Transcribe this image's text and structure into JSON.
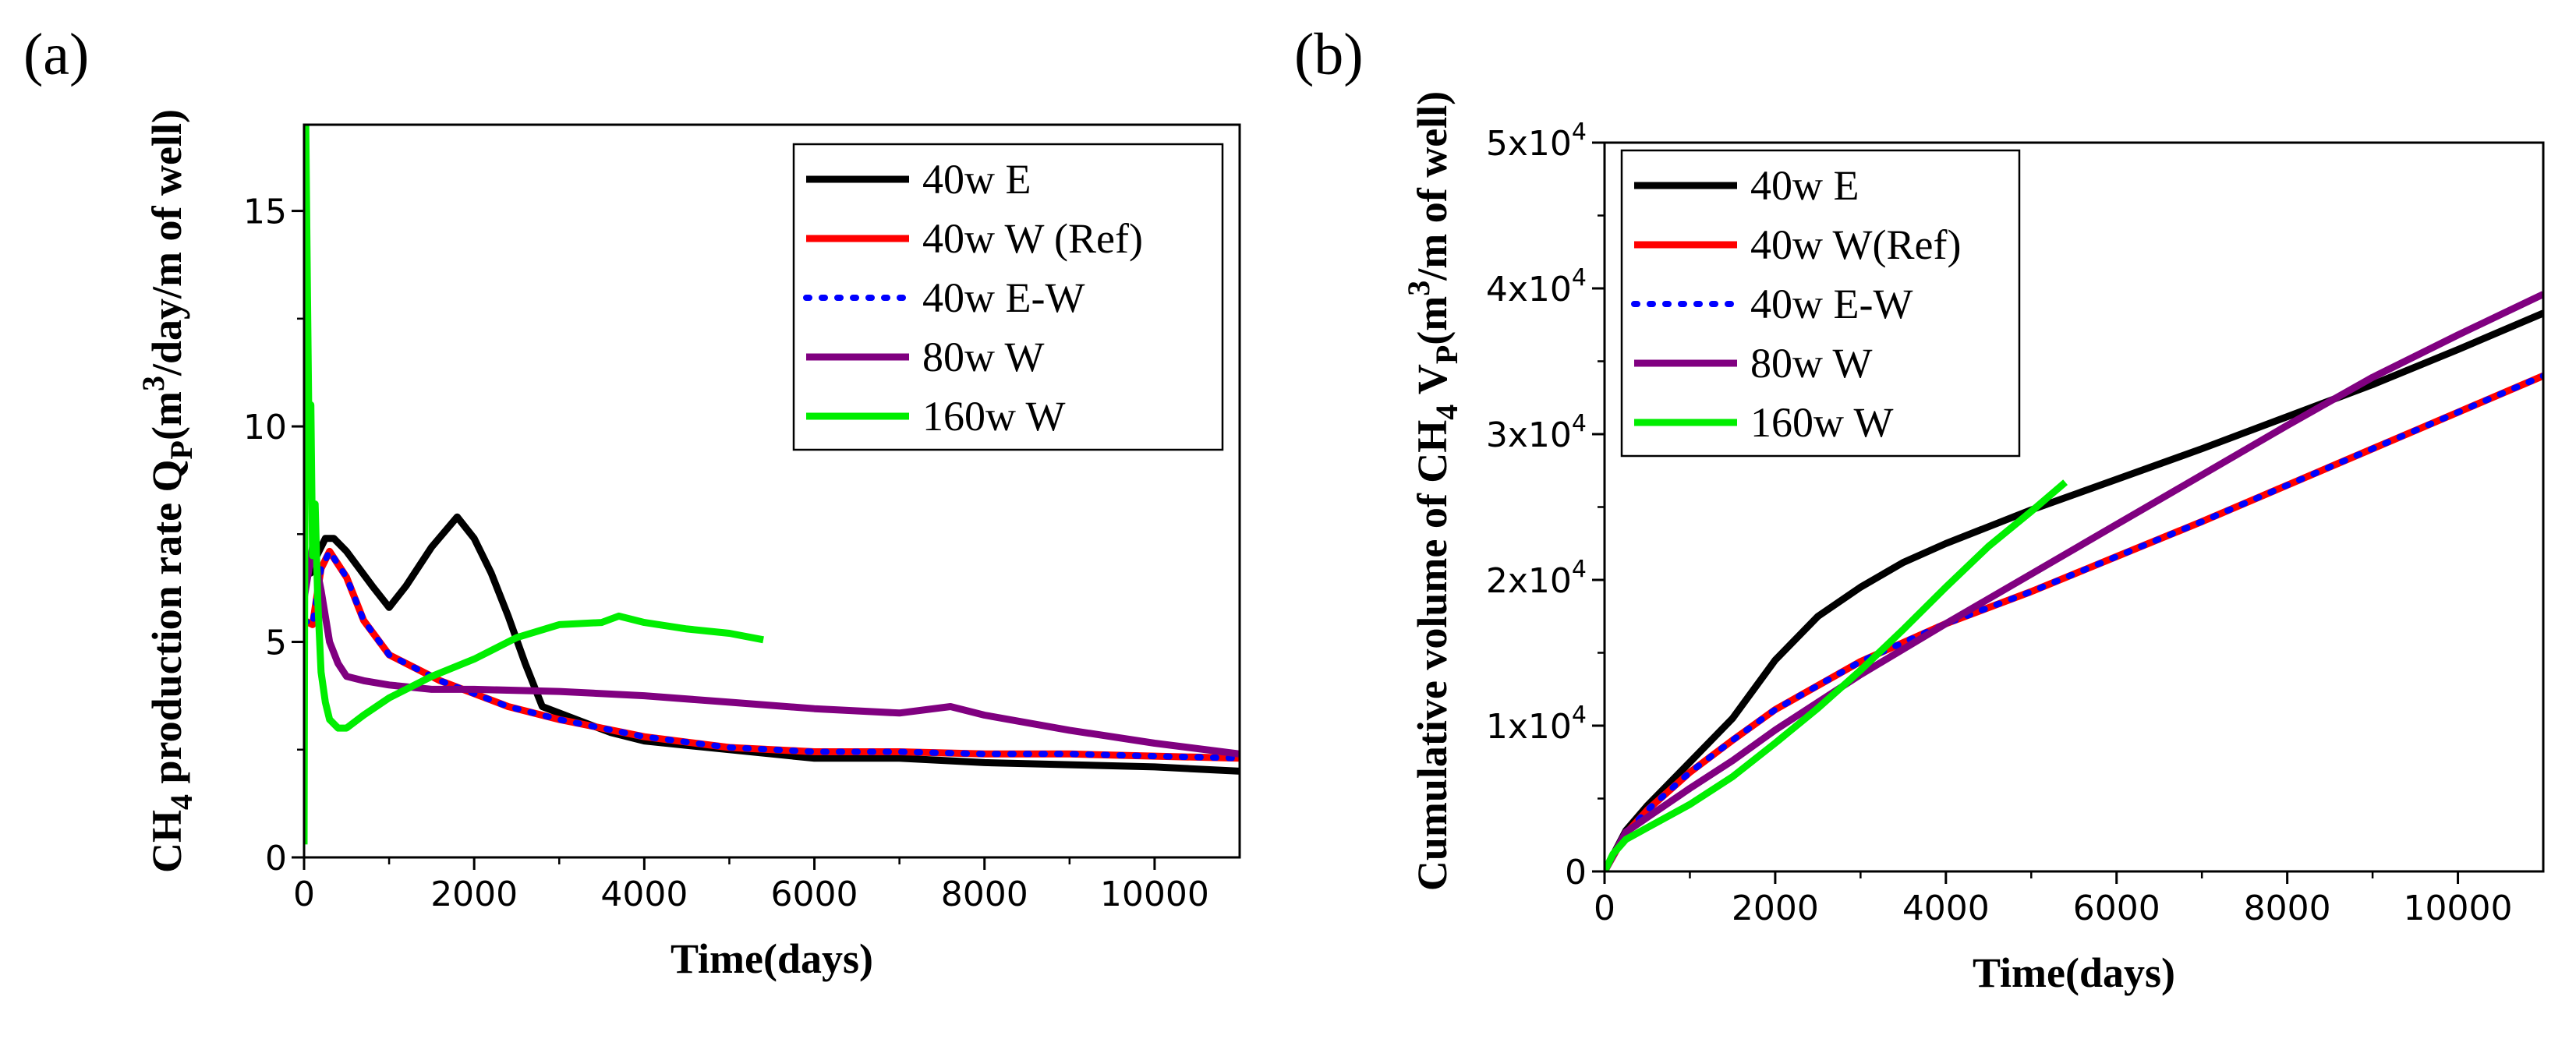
{
  "chart_data": [
    {
      "panel_label": "(a)",
      "type": "line",
      "xlabel": "Time(days)",
      "ylabel_parts": [
        "CH",
        "4",
        " production rate Q",
        "P",
        "(m",
        "3",
        "/day/m of well)"
      ],
      "xlim": [
        0,
        11000
      ],
      "ylim": [
        0,
        17
      ],
      "xticks": [
        0,
        2000,
        4000,
        6000,
        8000,
        10000
      ],
      "xtick_labels": [
        "0",
        "2000",
        "4000",
        "6000",
        "8000",
        "10000"
      ],
      "yticks": [
        0,
        5,
        10,
        15
      ],
      "ytick_labels": [
        "0",
        "5",
        "10",
        "15"
      ],
      "legend_position": "top-right",
      "series": [
        {
          "name": "40w  E",
          "color": "#000000",
          "dash": "solid",
          "x": [
            0,
            30,
            80,
            150,
            250,
            350,
            500,
            650,
            800,
            1000,
            1200,
            1500,
            1800,
            2000,
            2200,
            2400,
            2600,
            2800,
            3200,
            3600,
            4000,
            5000,
            6000,
            7000,
            8000,
            9000,
            10000,
            11000
          ],
          "y": [
            7.0,
            6.8,
            6.6,
            7.0,
            7.4,
            7.4,
            7.1,
            6.7,
            6.3,
            5.8,
            6.3,
            7.2,
            7.9,
            7.4,
            6.6,
            5.6,
            4.5,
            3.5,
            3.2,
            2.9,
            2.7,
            2.5,
            2.3,
            2.3,
            2.2,
            2.15,
            2.1,
            2.0
          ]
        },
        {
          "name": "40w  W (Ref)",
          "color": "#ff0000",
          "dash": "solid",
          "x": [
            0,
            100,
            200,
            300,
            500,
            700,
            1000,
            1300,
            1600,
            2000,
            2400,
            3000,
            3500,
            4000,
            5000,
            6000,
            7000,
            8000,
            9000,
            10000,
            11000
          ],
          "y": [
            5.5,
            5.4,
            6.7,
            7.1,
            6.5,
            5.5,
            4.7,
            4.4,
            4.1,
            3.8,
            3.5,
            3.2,
            3.0,
            2.8,
            2.55,
            2.45,
            2.45,
            2.4,
            2.4,
            2.35,
            2.3
          ]
        },
        {
          "name": "40w  E-W",
          "color": "#0000ff",
          "dash": "dotted",
          "x": [
            0,
            100,
            200,
            300,
            500,
            700,
            1000,
            1300,
            1600,
            2000,
            2400,
            3000,
            3500,
            4000,
            5000,
            6000,
            7000,
            8000,
            9000,
            10000,
            11000
          ],
          "y": [
            5.5,
            5.4,
            6.7,
            7.1,
            6.5,
            5.5,
            4.7,
            4.4,
            4.1,
            3.8,
            3.5,
            3.2,
            3.0,
            2.8,
            2.55,
            2.45,
            2.45,
            2.4,
            2.4,
            2.35,
            2.3
          ]
        },
        {
          "name": "80w  W",
          "color": "#800080",
          "dash": "solid",
          "x": [
            0,
            100,
            200,
            300,
            400,
            500,
            700,
            1000,
            1500,
            2000,
            3000,
            4000,
            5000,
            6000,
            7000,
            7600,
            8000,
            9000,
            10000,
            11000
          ],
          "y": [
            6.0,
            7.2,
            6.2,
            5.0,
            4.5,
            4.2,
            4.1,
            4.0,
            3.9,
            3.9,
            3.85,
            3.75,
            3.6,
            3.45,
            3.35,
            3.5,
            3.3,
            2.95,
            2.65,
            2.4
          ]
        },
        {
          "name": "160w W",
          "color": "#00ee00",
          "dash": "solid",
          "x": [
            0,
            20,
            40,
            60,
            80,
            100,
            130,
            160,
            200,
            250,
            300,
            400,
            500,
            700,
            1000,
            1500,
            2000,
            2500,
            3000,
            3500,
            3700,
            4000,
            4500,
            5000,
            5400
          ],
          "y": [
            0.3,
            17.0,
            13.0,
            9.5,
            10.5,
            7.0,
            8.2,
            6.0,
            4.3,
            3.6,
            3.2,
            3.0,
            3.0,
            3.3,
            3.7,
            4.2,
            4.6,
            5.1,
            5.4,
            5.45,
            5.6,
            5.45,
            5.3,
            5.2,
            5.05
          ]
        }
      ]
    },
    {
      "panel_label": "(b)",
      "type": "line",
      "xlabel": "Time(days)",
      "ylabel_parts": [
        "Cumulative volume of CH",
        "4",
        " V",
        "P",
        "(m",
        "3",
        "/m of well)"
      ],
      "xlim": [
        0,
        11000
      ],
      "ylim": [
        0,
        50000
      ],
      "xticks": [
        0,
        2000,
        4000,
        6000,
        8000,
        10000
      ],
      "xtick_labels": [
        "0",
        "2000",
        "4000",
        "6000",
        "8000",
        "10000"
      ],
      "yticks": [
        0,
        10000,
        20000,
        30000,
        40000,
        50000
      ],
      "ytick_labels": [
        [
          "0",
          ""
        ],
        [
          "1x10",
          "4"
        ],
        [
          "2x10",
          "4"
        ],
        [
          "3x10",
          "4"
        ],
        [
          "4x10",
          "4"
        ],
        [
          "5x10",
          "4"
        ]
      ],
      "legend_position": "top-left",
      "series": [
        {
          "name": "40w E",
          "color": "#000000",
          "dash": "solid",
          "x": [
            0,
            250,
            500,
            1000,
            1500,
            2000,
            2500,
            3000,
            3500,
            4000,
            5000,
            6000,
            7000,
            8000,
            9000,
            10000,
            11000
          ],
          "y": [
            0,
            2800,
            4500,
            7500,
            10500,
            14500,
            17500,
            19500,
            21200,
            22500,
            24800,
            26900,
            29000,
            31200,
            33400,
            35800,
            38300
          ]
        },
        {
          "name": "40w W(Ref)",
          "color": "#ff0000",
          "dash": "solid",
          "x": [
            0,
            250,
            500,
            1000,
            1500,
            2000,
            3000,
            4000,
            5000,
            6000,
            7000,
            8000,
            9000,
            10000,
            11000
          ],
          "y": [
            0,
            2600,
            4200,
            6800,
            9000,
            11100,
            14400,
            17000,
            19200,
            21600,
            24000,
            26500,
            29000,
            31500,
            34000
          ]
        },
        {
          "name": "40w E-W",
          "color": "#0000ff",
          "dash": "dotted",
          "x": [
            0,
            250,
            500,
            1000,
            1500,
            2000,
            3000,
            4000,
            5000,
            6000,
            7000,
            8000,
            9000,
            10000,
            11000
          ],
          "y": [
            0,
            2600,
            4200,
            6800,
            9000,
            11100,
            14400,
            17000,
            19200,
            21600,
            24000,
            26500,
            29000,
            31500,
            34000
          ]
        },
        {
          "name": "80w W",
          "color": "#800080",
          "dash": "solid",
          "x": [
            0,
            250,
            500,
            1000,
            1500,
            2000,
            3000,
            4000,
            5000,
            6000,
            7000,
            8000,
            9000,
            10000,
            11000
          ],
          "y": [
            0,
            2700,
            3700,
            5700,
            7600,
            9700,
            13500,
            17000,
            20400,
            23800,
            27200,
            30600,
            33900,
            36800,
            39600
          ]
        },
        {
          "name": "160w W",
          "color": "#00ee00",
          "dash": "solid",
          "x": [
            0,
            100,
            250,
            500,
            1000,
            1500,
            2000,
            2500,
            3000,
            3500,
            4000,
            4500,
            5000,
            5400
          ],
          "y": [
            0,
            1200,
            2200,
            3000,
            4600,
            6500,
            8800,
            11200,
            13800,
            16600,
            19500,
            22300,
            24700,
            26700
          ]
        }
      ]
    }
  ]
}
